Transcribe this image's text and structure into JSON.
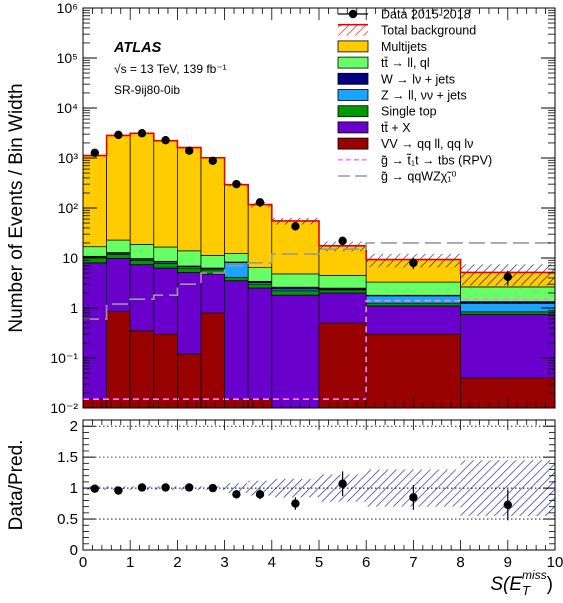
{
  "chart_data": [
    {
      "type": "bar",
      "stacked": true,
      "ylabel": "Number of Events / Bin Width",
      "yscale": "log",
      "ylim": [
        0.01,
        1000000
      ],
      "xlim": [
        0,
        10
      ],
      "ytick_labels": [
        "10⁻²",
        "10⁻¹",
        "1",
        "10",
        "10²",
        "10³",
        "10⁴",
        "10⁵",
        "10⁶"
      ],
      "atlas_label": "ATLAS",
      "energy_label": "√s = 13 TeV, 139 fb⁻¹",
      "region_label": "SR-9ij80-0ib",
      "legend_position": "top-right",
      "bin_edges": [
        0,
        0.5,
        1,
        1.5,
        2,
        2.5,
        3,
        3.5,
        4,
        5,
        6,
        8,
        10
      ],
      "series": [
        {
          "name": "VV → qq ll, qq lν",
          "color": "#990000",
          "values": [
            0.015,
            0.85,
            0.35,
            0.3,
            0.12,
            0.8,
            0.015,
            0.015,
            0.01,
            0.5,
            0.3,
            0.04
          ]
        },
        {
          "name": "tt̄ + X",
          "color": "#6a00cc",
          "values": [
            8,
            9,
            7,
            6,
            5,
            4,
            3.5,
            2.5,
            1.8,
            1.5,
            0.8,
            0.7
          ]
        },
        {
          "name": "Single top",
          "color": "#009900",
          "values": [
            2,
            2,
            1.6,
            1.5,
            1.2,
            1,
            0.6,
            0.5,
            0.4,
            0.3,
            0.15,
            0.1
          ]
        },
        {
          "name": "Z → ll, νν + jets",
          "color": "#1aa3ff",
          "values": [
            0.5,
            0.6,
            0.5,
            0.5,
            0.4,
            0.3,
            4,
            0.2,
            0.2,
            0.1,
            0.5,
            0.4
          ]
        },
        {
          "name": "W → lν + jets",
          "color": "#000080",
          "values": [
            0.3,
            0.4,
            0.3,
            0.3,
            0.2,
            0.2,
            0.2,
            0.2,
            0.2,
            0.1,
            0.05,
            0.1
          ]
        },
        {
          "name": "tt̄ → ll, ql",
          "color": "#66ff66",
          "values": [
            6,
            10,
            9,
            8,
            7,
            5,
            4,
            3,
            2.2,
            2,
            1.5,
            1.3
          ]
        },
        {
          "name": "Multijets",
          "color": "#ffcc00",
          "values": [
            1100,
            2800,
            3100,
            2200,
            1600,
            1000,
            280,
            110,
            50,
            13,
            6,
            2.5
          ]
        }
      ],
      "total_background": {
        "name": "Total background",
        "color": "#e60000",
        "values": [
          1120,
          2825,
          3120,
          2217,
          1614,
          1011,
          292,
          117,
          55,
          17.5,
          9.3,
          5.14
        ]
      },
      "background_uncertainty": [
        0.03,
        0.03,
        0.03,
        0.03,
        0.03,
        0.03,
        0.08,
        0.12,
        0.15,
        0.22,
        0.3,
        0.45
      ],
      "signals": [
        {
          "name": "g̃ → t̃₁t → tbs (RPV)",
          "color": "#ff80ff",
          "style": "dashed",
          "values": [
            0.015,
            0.015,
            0.015,
            0.015,
            0.015,
            0.015,
            0.015,
            0.015,
            0.015,
            0.015,
            1.4,
            1.5
          ]
        },
        {
          "name": "g̃ → qqWZχ̃₁⁰",
          "color": "#999999",
          "style": "longdash",
          "values": [
            0.6,
            1.2,
            1.5,
            1.8,
            3,
            5,
            7,
            8,
            12,
            15,
            20,
            20
          ]
        }
      ],
      "data": {
        "name": "Data 2015-2018",
        "x": [
          0.25,
          0.75,
          1.25,
          1.75,
          2.25,
          2.75,
          3.25,
          3.75,
          4.5,
          5.5,
          7,
          9
        ],
        "y": [
          1270,
          2900,
          3130,
          2270,
          1400,
          880,
          300,
          130,
          43,
          22,
          8,
          4.2
        ],
        "yerr": [
          36,
          54,
          56,
          48,
          37,
          30,
          17,
          11,
          6.5,
          4.7,
          2,
          1.4
        ]
      }
    },
    {
      "type": "scatter",
      "ylabel": "Data/Pred.",
      "xlabel": "S(E",
      "xlabel_sub": "T",
      "xlabel_sup": "miss",
      "xlabel_close": ")",
      "xlim": [
        0,
        10
      ],
      "ylim": [
        0,
        2.1
      ],
      "xticks": [
        0,
        1,
        2,
        3,
        4,
        5,
        6,
        7,
        8,
        9,
        10
      ],
      "xtick_labels": [
        "0",
        "1",
        "2",
        "3",
        "4",
        "5",
        "6",
        "7",
        "8",
        "9",
        "10"
      ],
      "yticks": [
        0,
        0.5,
        1,
        1.5,
        2
      ],
      "ytick_labels": [
        "0",
        "0.5",
        "1",
        "1.5",
        "2"
      ],
      "reference_lines": [
        0.5,
        1,
        1.5,
        2
      ],
      "x": [
        0.25,
        0.75,
        1.25,
        1.75,
        2.25,
        2.75,
        3.25,
        3.75,
        4.5,
        5.5,
        7,
        9
      ],
      "y": [
        0.99,
        0.96,
        1.01,
        1.01,
        1.01,
        1.0,
        0.9,
        0.9,
        0.75,
        1.07,
        0.85,
        0.73
      ],
      "yerr": [
        0.03,
        0.02,
        0.02,
        0.02,
        0.03,
        0.03,
        0.05,
        0.08,
        0.1,
        0.2,
        0.2,
        0.25
      ]
    }
  ]
}
